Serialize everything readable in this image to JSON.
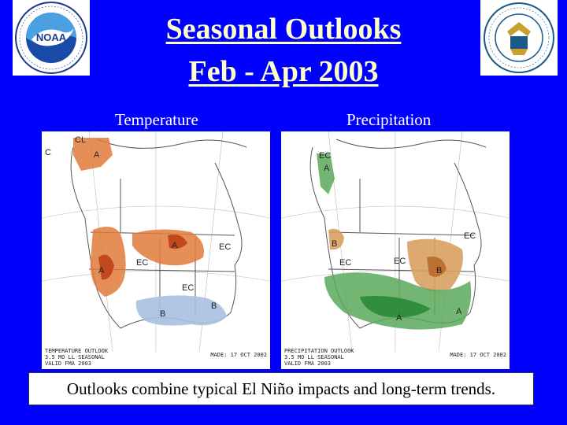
{
  "title": {
    "line1": "Seasonal Outlooks",
    "line2": "Feb - Apr 2003"
  },
  "logos": {
    "noaa": {
      "text": "NOAA",
      "ring_text": "NATIONAL OCEANIC AND ATMOSPHERIC ADMINISTRATION U.S. DEPARTMENT OF COMMERCE"
    },
    "commerce": {
      "ring_text": "DEPARTMENT OF COMMERCE UNITED STATES OF AMERICA"
    }
  },
  "maps": {
    "temperature": {
      "label": "Temperature",
      "caption": "TEMPERATURE OUTLOOK\n3.5 MO LL SEASONAL\nVALID FMA 2003",
      "made": "MADE: 17 OCT 2002",
      "annotations": [
        "CL",
        "A",
        "C",
        "EC",
        "EC",
        "EC",
        "A",
        "A",
        "B",
        "B"
      ]
    },
    "precipitation": {
      "label": "Precipitation",
      "caption": "PRECIPITATION OUTLOOK\n3.5 MO LL SEASONAL\nVALID FMA 2003",
      "made": "MADE: 17 OCT 2002",
      "annotations": [
        "EC",
        "A",
        "B",
        "EC",
        "EC",
        "EC",
        "B",
        "A",
        "A"
      ]
    }
  },
  "footnote": "Outlooks combine typical El Niño impacts and long-term trends.",
  "colors": {
    "background": "#0000ff",
    "title": "#ffffcc",
    "above_temp": "#e07a3a",
    "below_temp": "#a8c0e0",
    "above_precip": "#5aa85a",
    "below_precip": "#d8a060"
  }
}
